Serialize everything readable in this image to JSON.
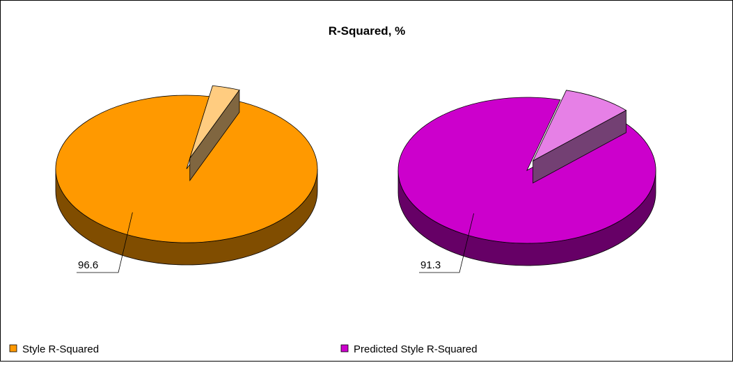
{
  "chart_data": {
    "type": "pie",
    "title": "R-Squared, %",
    "series": [
      {
        "name": "Style R-Squared",
        "color": "#ff9900",
        "values": [
          96.6,
          3.4
        ]
      },
      {
        "name": "Predicted Style R-Squared",
        "color": "#cc00cc",
        "values": [
          91.3,
          8.7
        ]
      }
    ]
  }
}
